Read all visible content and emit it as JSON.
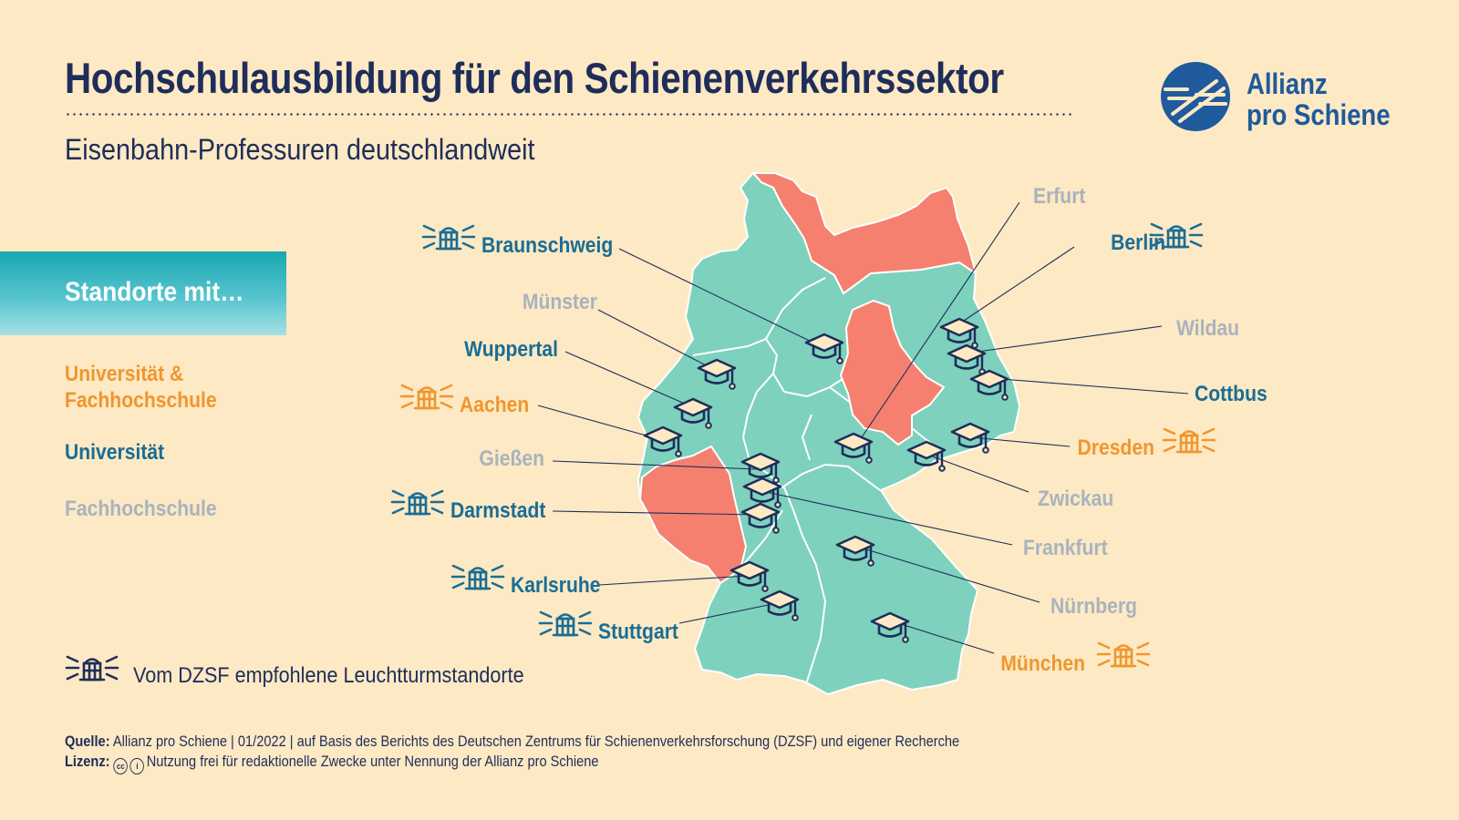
{
  "title": "Hochschulausbildung für den Schienenverkehrssektor",
  "subtitle": "Eisenbahn-Professuren deutschlandweit",
  "logo": {
    "line1": "Allianz",
    "line2": "pro Schiene"
  },
  "legend": {
    "heading": "Standorte mit…",
    "both": "Universität & Fachhochschule",
    "uni": "Universität",
    "fh": "Fachhochschule",
    "lighthouse": "Vom DZSF empfohlene Leuchtturmstandorte"
  },
  "colors": {
    "background": "#fde9c4",
    "green": "#7ed1bd",
    "highlight": "#f5806f",
    "both": "#f0962e",
    "uni": "#1a6d94",
    "fh": "#a9b3bd",
    "navy": "#1e2d5a"
  },
  "cities": [
    {
      "name": "Braunschweig",
      "type": "uni",
      "lighthouse": true
    },
    {
      "name": "Münster",
      "type": "fh",
      "lighthouse": false
    },
    {
      "name": "Wuppertal",
      "type": "uni",
      "lighthouse": false
    },
    {
      "name": "Aachen",
      "type": "both",
      "lighthouse": true
    },
    {
      "name": "Gießen",
      "type": "fh",
      "lighthouse": false
    },
    {
      "name": "Darmstadt",
      "type": "uni",
      "lighthouse": true
    },
    {
      "name": "Karlsruhe",
      "type": "uni",
      "lighthouse": true
    },
    {
      "name": "Stuttgart",
      "type": "uni",
      "lighthouse": true
    },
    {
      "name": "Erfurt",
      "type": "fh",
      "lighthouse": false
    },
    {
      "name": "Berlin",
      "type": "uni",
      "lighthouse": true
    },
    {
      "name": "Wildau",
      "type": "fh",
      "lighthouse": false
    },
    {
      "name": "Cottbus",
      "type": "uni",
      "lighthouse": false
    },
    {
      "name": "Dresden",
      "type": "both",
      "lighthouse": true
    },
    {
      "name": "Zwickau",
      "type": "fh",
      "lighthouse": false
    },
    {
      "name": "Frankfurt",
      "type": "fh",
      "lighthouse": false
    },
    {
      "name": "Nürnberg",
      "type": "fh",
      "lighthouse": false
    },
    {
      "name": "München",
      "type": "both",
      "lighthouse": true
    }
  ],
  "footer": {
    "source_label": "Quelle:",
    "source_text": "Allianz pro Schiene | 01/2022 | auf Basis des Berichts des Deutschen Zentrums für Schienenverkehrsforschung (DZSF) und eigener Recherche",
    "license_label": "Lizenz:",
    "license_text": "Nutzung frei für redaktionelle Zwecke unter Nennung der Allianz pro Schiene"
  }
}
